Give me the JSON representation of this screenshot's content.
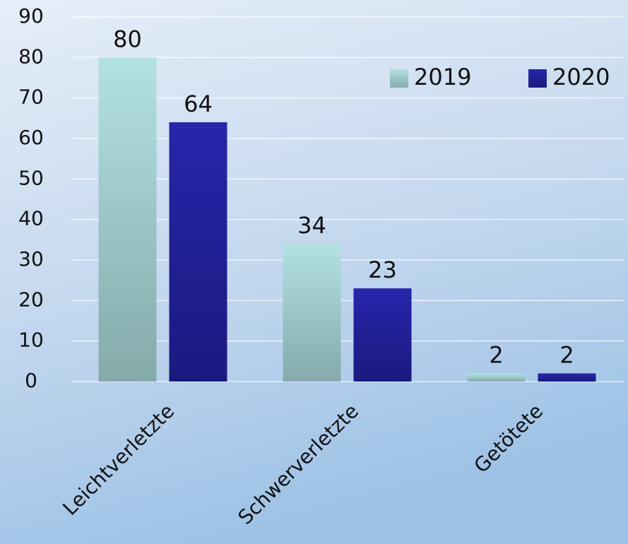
{
  "chart_data": {
    "type": "bar",
    "categories": [
      "Leichtverletzte",
      "Schwerverletzte",
      "Getötete"
    ],
    "series": [
      {
        "name": "2019",
        "color": "#9fcfd0",
        "values": [
          80,
          34,
          2
        ]
      },
      {
        "name": "2020",
        "color": "#1f1f9a",
        "values": [
          64,
          23,
          2
        ]
      }
    ],
    "ylim": [
      0,
      90
    ],
    "yticks": [
      0,
      10,
      20,
      30,
      40,
      50,
      60,
      70,
      80,
      90
    ],
    "grid": true,
    "legend": "top-right"
  }
}
